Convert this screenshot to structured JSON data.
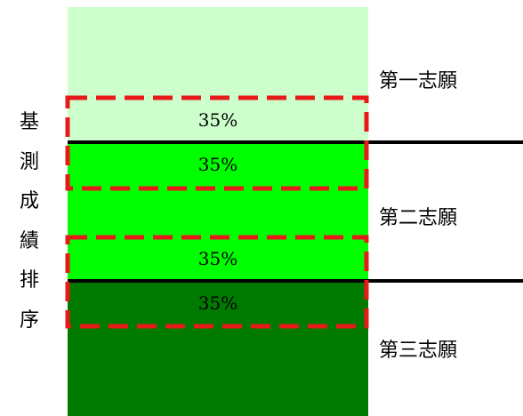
{
  "diagram": {
    "side_label_chars": [
      "基",
      "測",
      "成",
      "績",
      "排",
      "序"
    ],
    "bands": [
      {
        "id": "band-first-choice",
        "color": "#ccffcc"
      },
      {
        "id": "band-second-choice",
        "color": "#00ff00"
      },
      {
        "id": "band-third-choice",
        "color": "#007a00"
      }
    ],
    "choice_labels": [
      "第一志願",
      "第二志願",
      "第三志願"
    ],
    "overlap_boxes": [
      {
        "label": "35%"
      },
      {
        "label": "35%"
      }
    ],
    "colors": {
      "divider": "#000000",
      "dashed_box": "#e81919",
      "text": "#000000"
    }
  }
}
